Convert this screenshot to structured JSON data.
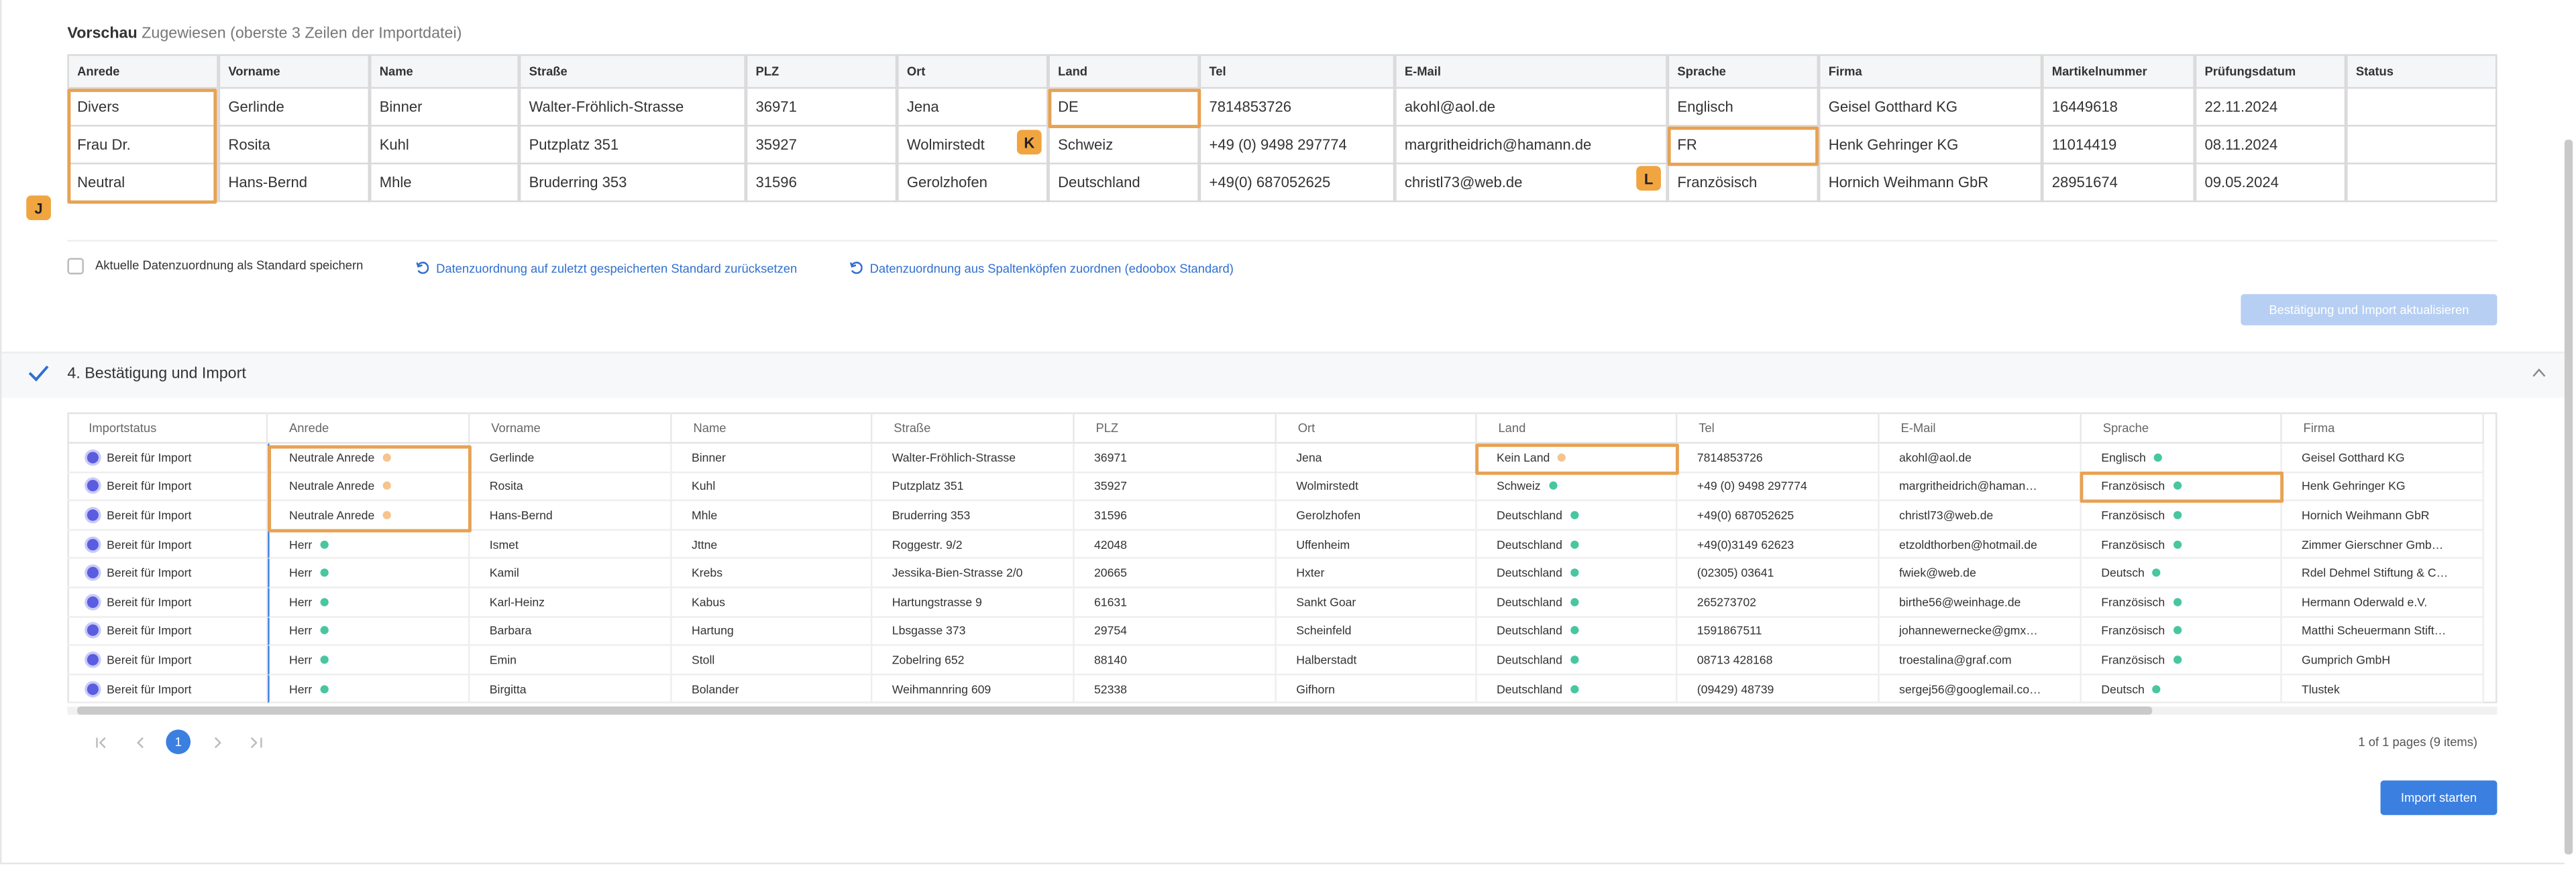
{
  "preview": {
    "title": "Vorschau",
    "subtitle": "Zugewiesen (oberste 3 Zeilen der Importdatei)",
    "headers": [
      "Anrede",
      "Vorname",
      "Name",
      "Straße",
      "PLZ",
      "Ort",
      "Land",
      "Tel",
      "E-Mail",
      "Sprache",
      "Firma",
      "Martikelnummer",
      "Prüfungsdatum",
      "Status"
    ],
    "rows": [
      [
        "Divers",
        "Gerlinde",
        "Binner",
        "Walter-Fröhlich-Strasse",
        "36971",
        "Jena",
        "DE",
        "7814853726",
        "akohl@aol.de",
        "Englisch",
        "Geisel Gotthard KG",
        "16449618",
        "22.11.2024"
      ],
      [
        "Frau Dr.",
        "Rosita",
        "Kuhl",
        "Putzplatz 351",
        "35927",
        "Wolmirstedt",
        "Schweiz",
        "+49 (0) 9498 297774",
        "margritheidrich@hamann.de",
        "FR",
        "Henk Gehringer KG",
        "11014419",
        "08.11.2024"
      ],
      [
        "Neutral",
        "Hans-Bernd",
        "Mhle",
        "Bruderring 353",
        "31596",
        "Gerolzhofen",
        "Deutschland",
        "+49(0) 687052625",
        "christl73@web.de",
        "Französisch",
        "Hornich Weihmann GbR",
        "28951674",
        "09.05.2024"
      ]
    ]
  },
  "options": {
    "checkbox_label": "Aktuelle Datenzuordnung als Standard speichern",
    "reset_link": "Datenzuordnung auf zuletzt gespeicherten Standard zurücksetzen",
    "assign_link": "Datenzuordnung aus Spaltenköpfen zuordnen (edoobox Standard)",
    "update_button": "Bestätigung und Import aktualisieren"
  },
  "section": {
    "title": "4. Bestätigung und Import"
  },
  "import_table": {
    "headers": [
      "Importstatus",
      "Anrede",
      "Vorname",
      "Name",
      "Straße",
      "PLZ",
      "Ort",
      "Land",
      "Tel",
      "E-Mail",
      "Sprache",
      "Firma"
    ],
    "rows": [
      [
        "Bereit für Import",
        "Neutrale Anrede",
        "Gerlinde",
        "Binner",
        "Walter-Fröhlich-Strasse",
        "36971",
        "Jena",
        "Kein Land",
        "7814853726",
        "akohl@aol.de",
        "Englisch",
        "Geisel Gotthard KG"
      ],
      [
        "Bereit für Import",
        "Neutrale Anrede",
        "Rosita",
        "Kuhl",
        "Putzplatz 351",
        "35927",
        "Wolmirstedt",
        "Schweiz",
        "+49 (0) 9498 297774",
        "margritheidrich@haman…",
        "Französisch",
        "Henk Gehringer KG"
      ],
      [
        "Bereit für Import",
        "Neutrale Anrede",
        "Hans-Bernd",
        "Mhle",
        "Bruderring 353",
        "31596",
        "Gerolzhofen",
        "Deutschland",
        "+49(0) 687052625",
        "christl73@web.de",
        "Französisch",
        "Hornich Weihmann GbR"
      ],
      [
        "Bereit für Import",
        "Herr",
        "Ismet",
        "Jttne",
        "Roggestr. 9/2",
        "42048",
        "Uffenheim",
        "Deutschland",
        "+49(0)3149 62623",
        "etzoldthorben@hotmail.de",
        "Französisch",
        "Zimmer Gierschner Gmb…"
      ],
      [
        "Bereit für Import",
        "Herr",
        "Kamil",
        "Krebs",
        "Jessika-Bien-Strasse 2/0",
        "20665",
        "Hxter",
        "Deutschland",
        "(02305) 03641",
        "fwiek@web.de",
        "Deutsch",
        "Rdel Dehmel Stiftung & C…"
      ],
      [
        "Bereit für Import",
        "Herr",
        "Karl-Heinz",
        "Kabus",
        "Hartungstrasse 9",
        "61631",
        "Sankt Goar",
        "Deutschland",
        "265273702",
        "birthe56@weinhage.de",
        "Französisch",
        "Hermann Oderwald e.V."
      ],
      [
        "Bereit für Import",
        "Herr",
        "Barbara",
        "Hartung",
        "Lbsgasse 373",
        "29754",
        "Scheinfeld",
        "Deutschland",
        "1591867511",
        "johannewernecke@gmx…",
        "Französisch",
        "Matthi Scheuermann Stift…"
      ],
      [
        "Bereit für Import",
        "Herr",
        "Emin",
        "Stoll",
        "Zobelring 652",
        "88140",
        "Halberstadt",
        "Deutschland",
        "08713 428168",
        "troestalina@graf.com",
        "Französisch",
        "Gumprich GmbH"
      ],
      [
        "Bereit für Import",
        "Herr",
        "Birgitta",
        "Bolander",
        "Weihmannring 609",
        "52338",
        "Gifhorn",
        "Deutschland",
        "(09429) 48739",
        "sergej56@googlemail.co…",
        "Deutsch",
        "Tlustek"
      ]
    ]
  },
  "pager": {
    "current": "1",
    "summary": "1 of 1 pages (9 items)"
  },
  "import_button": "Import starten",
  "badges": [
    "J",
    "K",
    "L"
  ]
}
